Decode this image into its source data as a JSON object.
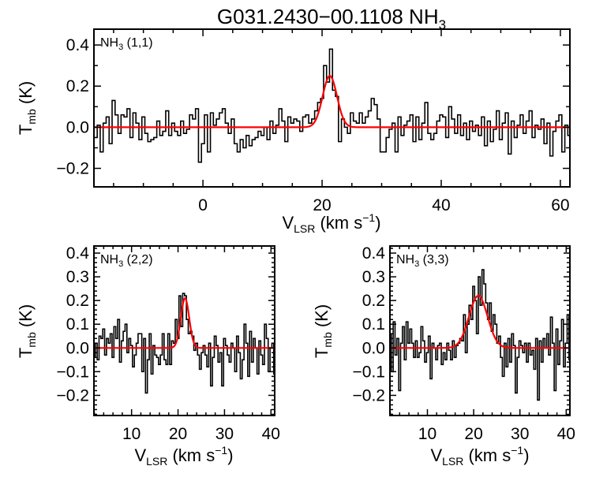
{
  "chart_data": {
    "title": "G031.2430−00.1108 NH",
    "title_sub": "3",
    "type": "line",
    "colors": {
      "spectrum": "#000000",
      "fit": "#ff0000"
    },
    "panels": [
      {
        "label": "NH",
        "label_sub": "3",
        "label_tail": " (1,1)",
        "xlabel": "V",
        "xlabel_sub": "LSR",
        "xlabel_unit": " (km s",
        "xlabel_sup": "−1",
        "xlabel_close": ")",
        "ylabel": "T",
        "ylabel_sub": "mb",
        "ylabel_unit": " (K)",
        "xlim": [
          -18.3,
          61.6
        ],
        "ylim": [
          -0.29,
          0.477
        ],
        "xticks": [
          0,
          20,
          40,
          60
        ],
        "xticklabels": [
          "0",
          "20",
          "40",
          "60"
        ],
        "xminor": 5,
        "yticks": [
          -0.2,
          0.0,
          0.2,
          0.4
        ],
        "yticklabels": [
          "−0.2",
          "0.0",
          "0.2",
          "0.4"
        ],
        "yminor": 0.1,
        "x_start": -18,
        "x_step": 0.5,
        "values": [
          -0.05,
          0.01,
          -0.12,
          0.02,
          0.05,
          -0.08,
          0.13,
          0.06,
          -0.03,
          0.06,
          0.05,
          0.09,
          -0.05,
          0.07,
          0.02,
          -0.06,
          0.05,
          -0.03,
          -0.07,
          -0.06,
          -0.05,
          0.03,
          -0.04,
          -0.02,
          0.08,
          -0.04,
          0.02,
          -0.02,
          -0.04,
          0.03,
          -0.03,
          -0.01,
          0.06,
          0.04,
          0.09,
          -0.17,
          -0.08,
          0.06,
          -0.12,
          0.07,
          0.01,
          0.04,
          0.07,
          0.09,
          0.02,
          -0.03,
          0.04,
          -0.08,
          -0.12,
          -0.06,
          -0.1,
          -0.04,
          -0.09,
          -0.06,
          -0.05,
          -0.02,
          -0.04,
          0.0,
          -0.06,
          0.03,
          -0.03,
          0.01,
          0.09,
          0.03,
          -0.07,
          0.05,
          0.02,
          0.04,
          0.03,
          -0.02,
          0.05,
          0.06,
          0.02,
          0.04,
          0.08,
          0.12,
          0.14,
          0.3,
          0.22,
          0.38,
          0.18,
          0.15,
          -0.07,
          0.04,
          0.0,
          -0.03,
          0.07,
          0.03,
          0.02,
          0.07,
          0.02,
          0.05,
          0.08,
          0.14,
          0.11,
          0.04,
          -0.12,
          -0.12,
          -0.05,
          -0.01,
          0.02,
          -0.12,
          0.05,
          -0.04,
          0.01,
          0.03,
          0.06,
          -0.07,
          0.05,
          -0.06,
          0.02,
          0.12,
          -0.03,
          -0.06,
          -0.03,
          0.03,
          0.06,
          0.05,
          -0.05,
          0.1,
          0.04,
          -0.03,
          0.06,
          -0.04,
          0.02,
          -0.06,
          0.03,
          -0.02,
          0.01,
          -0.04,
          0.05,
          -0.09,
          0.03,
          -0.07,
          -0.01,
          0.08,
          -0.06,
          0.02,
          0.07,
          -0.13,
          0.03,
          -0.05,
          0.01,
          0.06,
          -0.03,
          0.03,
          0.08,
          -0.05,
          0.01,
          -0.01,
          0.04,
          -0.08,
          0.02,
          -0.14,
          -0.02,
          0.03,
          0.06,
          -0.12,
          0.01,
          -0.04
        ],
        "fit": {
          "amplitude": 0.25,
          "center": 21.3,
          "sigma": 1.2
        }
      },
      {
        "label": "NH",
        "label_sub": "3",
        "label_tail": " (2,2)",
        "xlabel": "V",
        "xlabel_sub": "LSR",
        "xlabel_unit": " (km s",
        "xlabel_sup": "−1",
        "xlabel_close": ")",
        "ylabel": "T",
        "ylabel_sub": "mb",
        "ylabel_unit": " (K)",
        "xlim": [
          1.9,
          40.8
        ],
        "ylim": [
          -0.285,
          0.43
        ],
        "xticks": [
          10,
          20,
          30,
          40
        ],
        "xticklabels": [
          "10",
          "20",
          "30",
          "40"
        ],
        "xminor": 2,
        "yticks": [
          -0.2,
          -0.1,
          0.0,
          0.1,
          0.2,
          0.3,
          0.4
        ],
        "yticklabels": [
          "−0.2",
          "−0.1",
          "0.0",
          "0.1",
          "0.2",
          "0.3",
          "0.4"
        ],
        "yminor": 0.02,
        "x_start": 2,
        "x_step": 0.4,
        "values": [
          -0.04,
          0.02,
          -0.05,
          0.05,
          0.04,
          0.08,
          -0.03,
          0.04,
          0.02,
          0.06,
          -0.04,
          0.09,
          0.04,
          0.12,
          -0.06,
          0.03,
          0.07,
          0.1,
          -0.02,
          0.04,
          0.01,
          -0.08,
          -0.03,
          0.02,
          0.06,
          0.06,
          -0.1,
          0.04,
          -0.19,
          -0.05,
          0.06,
          -0.11,
          0.01,
          -0.03,
          -0.04,
          -0.07,
          -0.03,
          0.06,
          -0.05,
          -0.07,
          0.06,
          -0.07,
          0.03,
          0.02,
          0.12,
          0.04,
          0.22,
          0.09,
          0.23,
          0.22,
          0.12,
          0.06,
          0.07,
          0.05,
          -0.01,
          0.02,
          -0.03,
          -0.09,
          -0.02,
          0.01,
          -0.03,
          -0.08,
          0.02,
          -0.16,
          -0.04,
          0.05,
          0.01,
          -0.06,
          -0.02,
          -0.16,
          0.04,
          0.01,
          -0.03,
          -0.06,
          0.02,
          0.0,
          -0.1,
          0.05,
          -0.02,
          -0.13,
          -0.05,
          0.1,
          0.02,
          -0.12,
          0.07,
          -0.06,
          0.04,
          0.0,
          -0.11,
          0.03,
          -0.03,
          -0.07,
          0.1,
          0.04,
          -0.1,
          0.0,
          0.02,
          -0.11
        ],
        "fit": {
          "amplitude": 0.21,
          "center": 21.5,
          "sigma": 0.9
        }
      },
      {
        "label": "NH",
        "label_sub": "3",
        "label_tail": " (3,3)",
        "xlabel": "V",
        "xlabel_sub": "LSR",
        "xlabel_unit": " (km s",
        "xlabel_sup": "−1",
        "xlabel_close": ")",
        "ylabel": "T",
        "ylabel_sub": "mb",
        "ylabel_unit": " (K)",
        "xlim": [
          1.9,
          40.8
        ],
        "ylim": [
          -0.285,
          0.43
        ],
        "xticks": [
          10,
          20,
          30,
          40
        ],
        "xticklabels": [
          "10",
          "20",
          "30",
          "40"
        ],
        "xminor": 2,
        "yticks": [
          -0.2,
          -0.1,
          0.0,
          0.1,
          0.2,
          0.3,
          0.4
        ],
        "yticklabels": [
          "−0.2",
          "−0.1",
          "0.0",
          "0.1",
          "0.2",
          "0.3",
          "0.4"
        ],
        "yminor": 0.02,
        "x_start": 2,
        "x_step": 0.4,
        "values": [
          0.06,
          -0.1,
          0.11,
          -0.03,
          0.04,
          -0.18,
          0.02,
          0.09,
          -0.05,
          0.11,
          0.02,
          0.08,
          0.02,
          -0.04,
          0.03,
          -0.04,
          -0.02,
          0.09,
          0.03,
          -0.06,
          -0.02,
          0.05,
          -0.13,
          0.02,
          0.0,
          -0.05,
          0.01,
          0.02,
          -0.07,
          -0.02,
          -0.05,
          0.02,
          -0.01,
          -0.05,
          0.03,
          -0.04,
          0.01,
          0.02,
          0.04,
          0.03,
          0.14,
          -0.02,
          0.1,
          0.18,
          0.12,
          0.26,
          0.2,
          0.06,
          0.3,
          0.18,
          0.33,
          0.27,
          0.19,
          0.12,
          0.19,
          0.07,
          0.14,
          0.1,
          0.02,
          0.05,
          -0.04,
          -0.12,
          0.02,
          -0.08,
          0.04,
          -0.06,
          0.06,
          0.01,
          -0.19,
          -0.04,
          0.03,
          0.01,
          -0.02,
          0.02,
          -0.06,
          0.02,
          -0.03,
          -0.01,
          -0.09,
          0.04,
          -0.22,
          0.03,
          -0.06,
          0.04,
          0.0,
          0.06,
          -0.03,
          0.13,
          0.02,
          -0.18,
          0.08,
          -0.07,
          0.03,
          0.12,
          -0.08,
          0.02,
          0.14,
          -0.05
        ],
        "fit": {
          "amplitude": 0.22,
          "center": 21.0,
          "sigma": 2.0
        }
      }
    ]
  }
}
